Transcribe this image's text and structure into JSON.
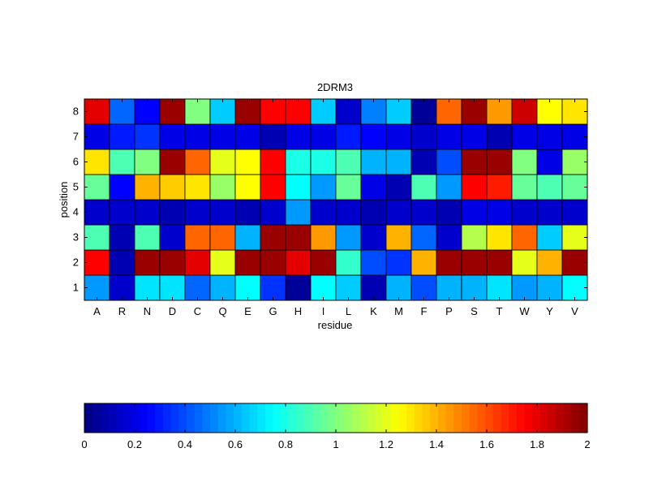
{
  "chart_data": {
    "type": "heatmap",
    "title": "2DRM3",
    "xlabel": "residue",
    "ylabel": "position",
    "x_categories": [
      "A",
      "R",
      "N",
      "D",
      "C",
      "Q",
      "E",
      "G",
      "H",
      "I",
      "L",
      "K",
      "M",
      "F",
      "P",
      "S",
      "T",
      "W",
      "Y",
      "V"
    ],
    "y_categories": [
      "1",
      "2",
      "3",
      "4",
      "5",
      "6",
      "7",
      "8"
    ],
    "value_range": [
      0,
      2
    ],
    "colormap": "jet",
    "values": [
      [
        0.55,
        0.15,
        0.7,
        0.7,
        0.45,
        0.6,
        0.75,
        0.35,
        0.05,
        0.75,
        0.65,
        0.1,
        0.6,
        0.4,
        0.6,
        0.6,
        0.7,
        0.55,
        0.6,
        0.75
      ],
      [
        1.75,
        0.1,
        1.95,
        1.95,
        1.8,
        1.2,
        1.95,
        1.95,
        1.8,
        1.95,
        0.85,
        0.4,
        0.35,
        1.4,
        1.95,
        1.95,
        1.95,
        1.2,
        1.4,
        1.95
      ],
      [
        0.9,
        0.1,
        0.9,
        0.15,
        1.55,
        1.55,
        0.6,
        1.95,
        1.95,
        1.45,
        0.55,
        0.15,
        1.4,
        0.45,
        0.15,
        1.1,
        1.3,
        1.55,
        0.65,
        1.2
      ],
      [
        0.15,
        0.15,
        0.15,
        0.1,
        0.15,
        0.15,
        0.1,
        0.15,
        0.55,
        0.15,
        0.15,
        0.1,
        0.15,
        0.15,
        0.1,
        0.2,
        0.2,
        0.15,
        0.15,
        0.15
      ],
      [
        0.95,
        0.25,
        1.4,
        1.35,
        1.3,
        1.05,
        1.25,
        1.75,
        0.75,
        0.55,
        0.95,
        0.2,
        0.1,
        0.9,
        0.55,
        1.75,
        1.7,
        0.95,
        0.9,
        0.95
      ],
      [
        1.3,
        0.9,
        1.0,
        1.95,
        1.55,
        1.2,
        1.25,
        1.75,
        0.8,
        0.8,
        0.9,
        0.6,
        0.6,
        0.1,
        0.4,
        1.95,
        1.95,
        1.0,
        0.2,
        1.05
      ],
      [
        0.2,
        0.3,
        0.35,
        0.2,
        0.2,
        0.2,
        0.2,
        0.1,
        0.2,
        0.2,
        0.3,
        0.25,
        0.2,
        0.15,
        0.2,
        0.2,
        0.1,
        0.2,
        0.2,
        0.2
      ],
      [
        1.8,
        0.45,
        0.25,
        1.95,
        1.0,
        0.65,
        1.95,
        1.75,
        1.75,
        0.65,
        0.15,
        0.5,
        0.65,
        0.05,
        1.55,
        1.95,
        1.45,
        1.85,
        1.25,
        1.3
      ]
    ],
    "colorbar": {
      "ticks": [
        "0",
        "0.2",
        "0.4",
        "0.6",
        "0.8",
        "1",
        "1.2",
        "1.4",
        "1.6",
        "1.8",
        "2"
      ]
    }
  }
}
